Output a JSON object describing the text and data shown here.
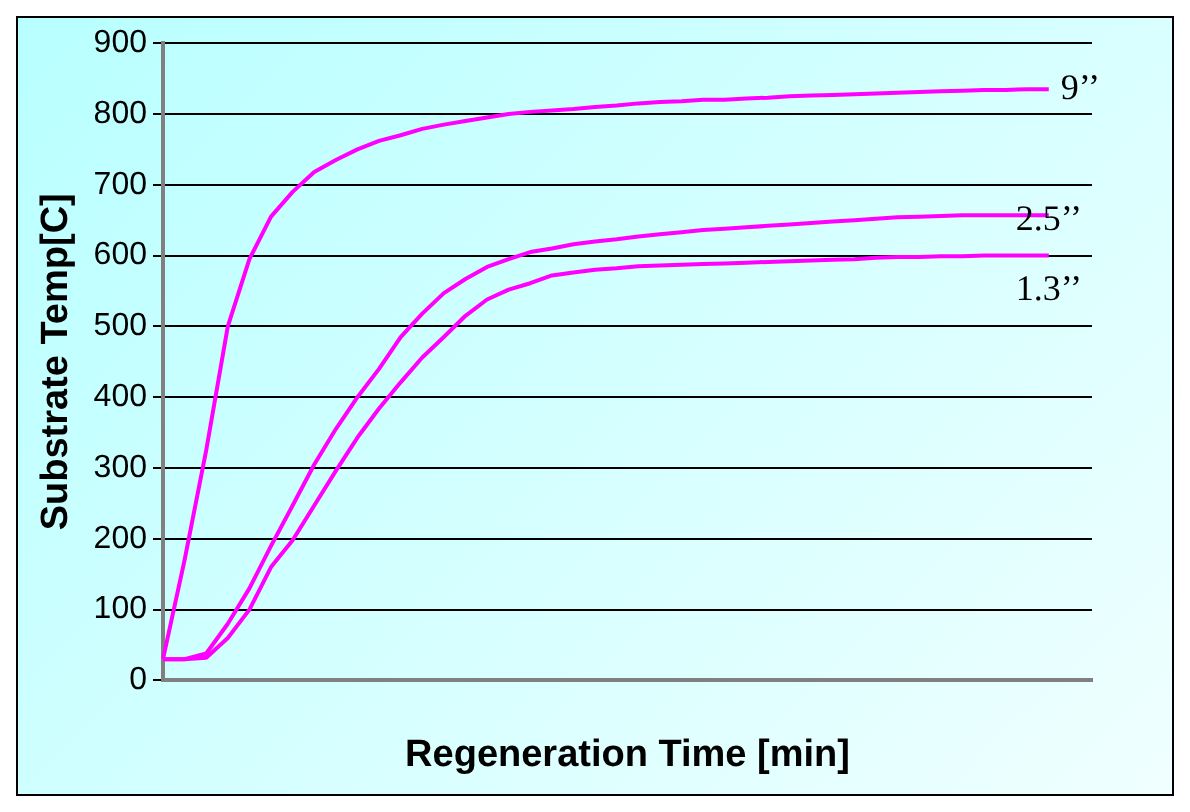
{
  "chart_data": {
    "type": "line",
    "xlabel": "Regeneration Time [min]",
    "ylabel": "Substrate Temp[C]",
    "categories": [
      null,
      null,
      null,
      null,
      null,
      null,
      null,
      null,
      null,
      null,
      null,
      null,
      null,
      null,
      null,
      null,
      null,
      null,
      null,
      null,
      null,
      null,
      null,
      null,
      null,
      null,
      null,
      null,
      null,
      null,
      null,
      null,
      null,
      null,
      null,
      null,
      null,
      null,
      null,
      null,
      null,
      null,
      null,
      null
    ],
    "series": [
      {
        "name": "9’’",
        "color": "#ff00ff",
        "values": [
          30,
          170,
          325,
          500,
          595,
          655,
          690,
          718,
          735,
          750,
          762,
          770,
          779,
          785,
          790,
          795,
          800,
          803,
          805,
          807,
          810,
          812,
          815,
          817,
          818,
          820,
          820,
          822,
          823,
          825,
          826,
          827,
          828,
          829,
          830,
          831,
          832,
          833,
          834,
          834,
          835,
          835,
          null,
          null
        ]
      },
      {
        "name": "2.5’’",
        "color": "#ff00ff",
        "values": [
          30,
          30,
          38,
          80,
          130,
          190,
          247,
          305,
          355,
          400,
          440,
          485,
          518,
          547,
          567,
          584,
          595,
          605,
          610,
          616,
          620,
          623,
          627,
          630,
          633,
          636,
          638,
          640,
          642,
          644,
          646,
          648,
          650,
          652,
          654,
          655,
          656,
          657,
          657,
          657,
          657,
          657,
          null,
          null
        ]
      },
      {
        "name": "1.3’’",
        "color": "#ff00ff",
        "values": [
          30,
          30,
          32,
          60,
          100,
          160,
          198,
          247,
          296,
          343,
          384,
          421,
          456,
          485,
          515,
          538,
          552,
          561,
          572,
          576,
          580,
          582,
          585,
          586,
          587,
          588,
          589,
          590,
          591,
          592,
          593,
          594,
          595,
          597,
          598,
          598,
          599,
          599,
          600,
          600,
          600,
          600,
          null,
          null
        ]
      }
    ],
    "ylim": [
      0,
      900
    ],
    "yticks": [
      0,
      100,
      200,
      300,
      400,
      500,
      600,
      700,
      800,
      900
    ],
    "grid": "y",
    "legend": false,
    "tick_labels": "y",
    "marker": "none",
    "line_style": "solid"
  }
}
